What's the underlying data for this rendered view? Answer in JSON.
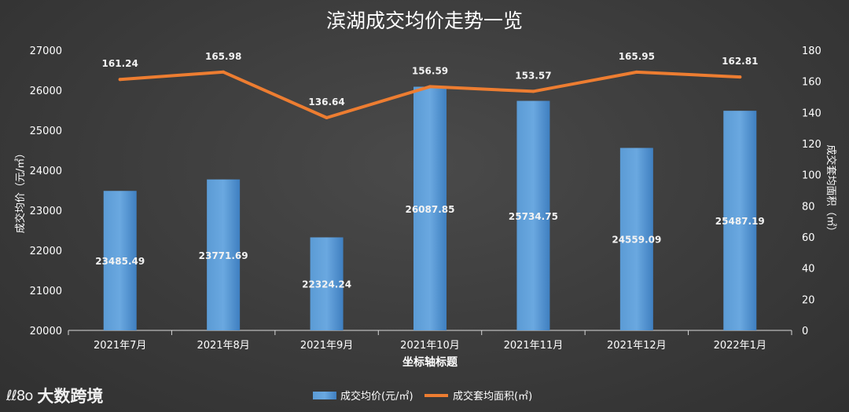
{
  "chart_data": {
    "type": "bar+line",
    "title": "滨湖成交均价走势一览",
    "xlabel": "坐标轴标题",
    "ylabel_left": "成交均价（元/㎡）",
    "ylabel_right": "成交套均面积（㎡）",
    "categories": [
      "2021年7月",
      "2021年8月",
      "2021年9月",
      "2021年10月",
      "2021年11月",
      "2021年12月",
      "2022年1月"
    ],
    "series": [
      {
        "name": "成交均价(元/㎡)",
        "type": "bar",
        "axis": "left",
        "color": "#4a8fd4",
        "values": [
          23485.49,
          23771.69,
          22324.24,
          26087.85,
          25734.75,
          24559.09,
          25487.19
        ],
        "labels": [
          "23485.49",
          "23771.69",
          "22324.24",
          "26087.85",
          "25734.75",
          "24559.09",
          "25487.19"
        ]
      },
      {
        "name": "成交套均面积(㎡)",
        "type": "line",
        "axis": "right",
        "color": "#ed7d31",
        "values": [
          161.24,
          165.98,
          136.64,
          156.59,
          153.57,
          165.95,
          162.81
        ],
        "labels": [
          "161.24",
          "165.98",
          "136.64",
          "156.59",
          "153.57",
          "165.95",
          "162.81"
        ]
      }
    ],
    "ylim_left": [
      20000,
      27000
    ],
    "yticks_left": [
      "20000",
      "21000",
      "22000",
      "23000",
      "24000",
      "25000",
      "26000",
      "27000"
    ],
    "ylim_right": [
      0,
      180
    ],
    "yticks_right": [
      "0",
      "20",
      "40",
      "60",
      "80",
      "100",
      "120",
      "140",
      "160",
      "180"
    ],
    "legend_position": "bottom-center",
    "grid": false
  },
  "watermark": {
    "logo_text": "ℓℓ8o",
    "brand": "大数跨境"
  }
}
